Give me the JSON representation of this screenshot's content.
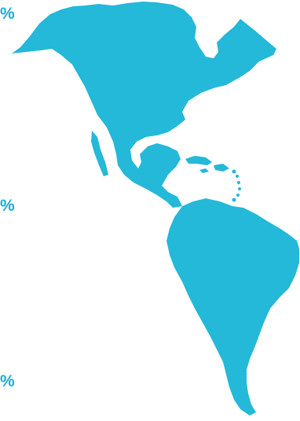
{
  "labels": {
    "top_percent": "%",
    "middle_percent": "%",
    "bottom_percent": "%"
  },
  "map": {
    "fill_color": "#24b8d9",
    "text_color": "#1badd3"
  }
}
